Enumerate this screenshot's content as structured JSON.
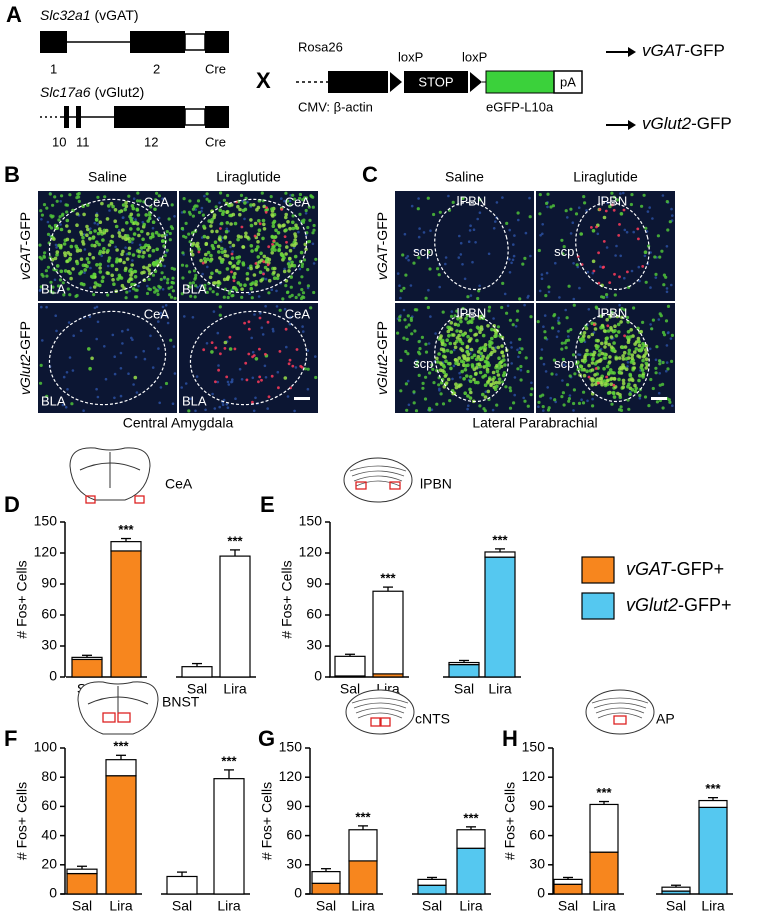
{
  "panel_a": {
    "letter": "A",
    "gene_1": {
      "symbol": "Slc32a1",
      "name": "(vGAT)",
      "exons": [
        "1",
        "2",
        "Cre"
      ]
    },
    "gene_2": {
      "symbol": "Slc17a6",
      "name": "(vGlut2)",
      "exons": [
        "10",
        "11",
        "12",
        "Cre"
      ]
    },
    "cross": "X",
    "construct": {
      "locus": "Rosa26",
      "lox": [
        "loxP",
        "loxP"
      ],
      "stop": "STOP",
      "polya": "pA",
      "promoter": "CMV: β-actin",
      "reporter": "eGFP-L10a"
    },
    "results": [
      {
        "gene": "vGAT",
        "suffix": "-GFP"
      },
      {
        "gene": "vGlut2",
        "suffix": "-GFP"
      }
    ]
  },
  "panel_b": {
    "letter": "B",
    "columns": [
      "Saline",
      "Liraglutide"
    ],
    "rows": [
      {
        "gene": "vGAT",
        "suffix": "-GFP"
      },
      {
        "gene": "vGlut2",
        "suffix": "-GFP"
      }
    ],
    "images": [
      [
        "CeA",
        "BLA"
      ],
      [
        "CeA",
        "BLA"
      ],
      [
        "CeA",
        "BLA"
      ],
      [
        "CeA",
        "BLA"
      ]
    ],
    "caption": "Central Amygdala"
  },
  "panel_c": {
    "letter": "C",
    "columns": [
      "Saline",
      "Liraglutide"
    ],
    "rows": [
      {
        "gene": "vGAT",
        "suffix": "-GFP"
      },
      {
        "gene": "vGlut2",
        "suffix": "-GFP"
      }
    ],
    "images": [
      [
        "lPBN",
        "scp"
      ],
      [
        "lPBN",
        "scp"
      ],
      [
        "lPBN",
        "scp"
      ],
      [
        "lPBN",
        "scp"
      ]
    ],
    "caption": "Lateral Parabrachial"
  },
  "legend": [
    {
      "gene": "vGAT",
      "suffix": "-GFP+",
      "color": "#f7861e"
    },
    {
      "gene": "vGlut2",
      "suffix": "-GFP+",
      "color": "#55c8f0"
    }
  ],
  "chart_data": [
    {
      "type": "stacked_bar",
      "panel": "D",
      "region": "CeA",
      "ylabel": "# Fos+ Cells",
      "ylim": [
        0,
        150
      ],
      "yticks": [
        0,
        30,
        60,
        90,
        120,
        150
      ],
      "groups": [
        {
          "categories": [
            "Sal",
            "Lira"
          ],
          "color": "#f7861e",
          "gfp": [
            17,
            122
          ],
          "rest": [
            2,
            9
          ],
          "error": [
            2,
            3
          ],
          "sig": "***"
        },
        {
          "categories": [
            "Sal",
            "Lira"
          ],
          "color": "#55c8f0",
          "gfp": [
            0,
            0
          ],
          "rest": [
            10,
            117
          ],
          "error": [
            3,
            6
          ],
          "sig": "***"
        }
      ]
    },
    {
      "type": "stacked_bar",
      "panel": "E",
      "region": "lPBN",
      "ylabel": "# Fos+ Cells",
      "ylim": [
        0,
        150
      ],
      "yticks": [
        0,
        30,
        60,
        90,
        120,
        150
      ],
      "groups": [
        {
          "categories": [
            "Sal",
            "Lira"
          ],
          "color": "#f7861e",
          "gfp": [
            1,
            3
          ],
          "rest": [
            19,
            80
          ],
          "error": [
            2,
            4
          ],
          "sig": "***"
        },
        {
          "categories": [
            "Sal",
            "Lira"
          ],
          "color": "#55c8f0",
          "gfp": [
            12,
            116
          ],
          "rest": [
            2,
            5
          ],
          "error": [
            2,
            3
          ],
          "sig": "***"
        }
      ]
    },
    {
      "type": "stacked_bar",
      "panel": "F",
      "region": "BNST",
      "ylabel": "# Fos+ Cells",
      "ylim": [
        0,
        100
      ],
      "yticks": [
        0,
        20,
        40,
        60,
        80,
        100
      ],
      "groups": [
        {
          "categories": [
            "Sal",
            "Lira"
          ],
          "color": "#f7861e",
          "gfp": [
            14,
            81
          ],
          "rest": [
            3,
            11
          ],
          "error": [
            2,
            3
          ],
          "sig": "***"
        },
        {
          "categories": [
            "Sal",
            "Lira"
          ],
          "color": "#55c8f0",
          "gfp": [
            0,
            0
          ],
          "rest": [
            12,
            79
          ],
          "error": [
            3,
            6
          ],
          "sig": "***"
        }
      ]
    },
    {
      "type": "stacked_bar",
      "panel": "G",
      "region": "cNTS",
      "ylabel": "# Fos+ Cells",
      "ylim": [
        0,
        150
      ],
      "yticks": [
        0,
        30,
        60,
        90,
        120,
        150
      ],
      "groups": [
        {
          "categories": [
            "Sal",
            "Lira"
          ],
          "color": "#f7861e",
          "gfp": [
            11,
            34
          ],
          "rest": [
            12,
            32
          ],
          "error": [
            3,
            4
          ],
          "sig": "***"
        },
        {
          "categories": [
            "Sal",
            "Lira"
          ],
          "color": "#55c8f0",
          "gfp": [
            9,
            47
          ],
          "rest": [
            6,
            19
          ],
          "error": [
            2,
            3
          ],
          "sig": "***"
        }
      ]
    },
    {
      "type": "stacked_bar",
      "panel": "H",
      "region": "AP",
      "ylabel": "# Fos+ Cells",
      "ylim": [
        0,
        150
      ],
      "yticks": [
        0,
        30,
        60,
        90,
        120,
        150
      ],
      "groups": [
        {
          "categories": [
            "Sal",
            "Lira"
          ],
          "color": "#f7861e",
          "gfp": [
            10,
            43
          ],
          "rest": [
            5,
            49
          ],
          "error": [
            2,
            3
          ],
          "sig": "***"
        },
        {
          "categories": [
            "Sal",
            "Lira"
          ],
          "color": "#55c8f0",
          "gfp": [
            3,
            89
          ],
          "rest": [
            4,
            7
          ],
          "error": [
            2,
            3
          ],
          "sig": "***"
        }
      ]
    }
  ]
}
